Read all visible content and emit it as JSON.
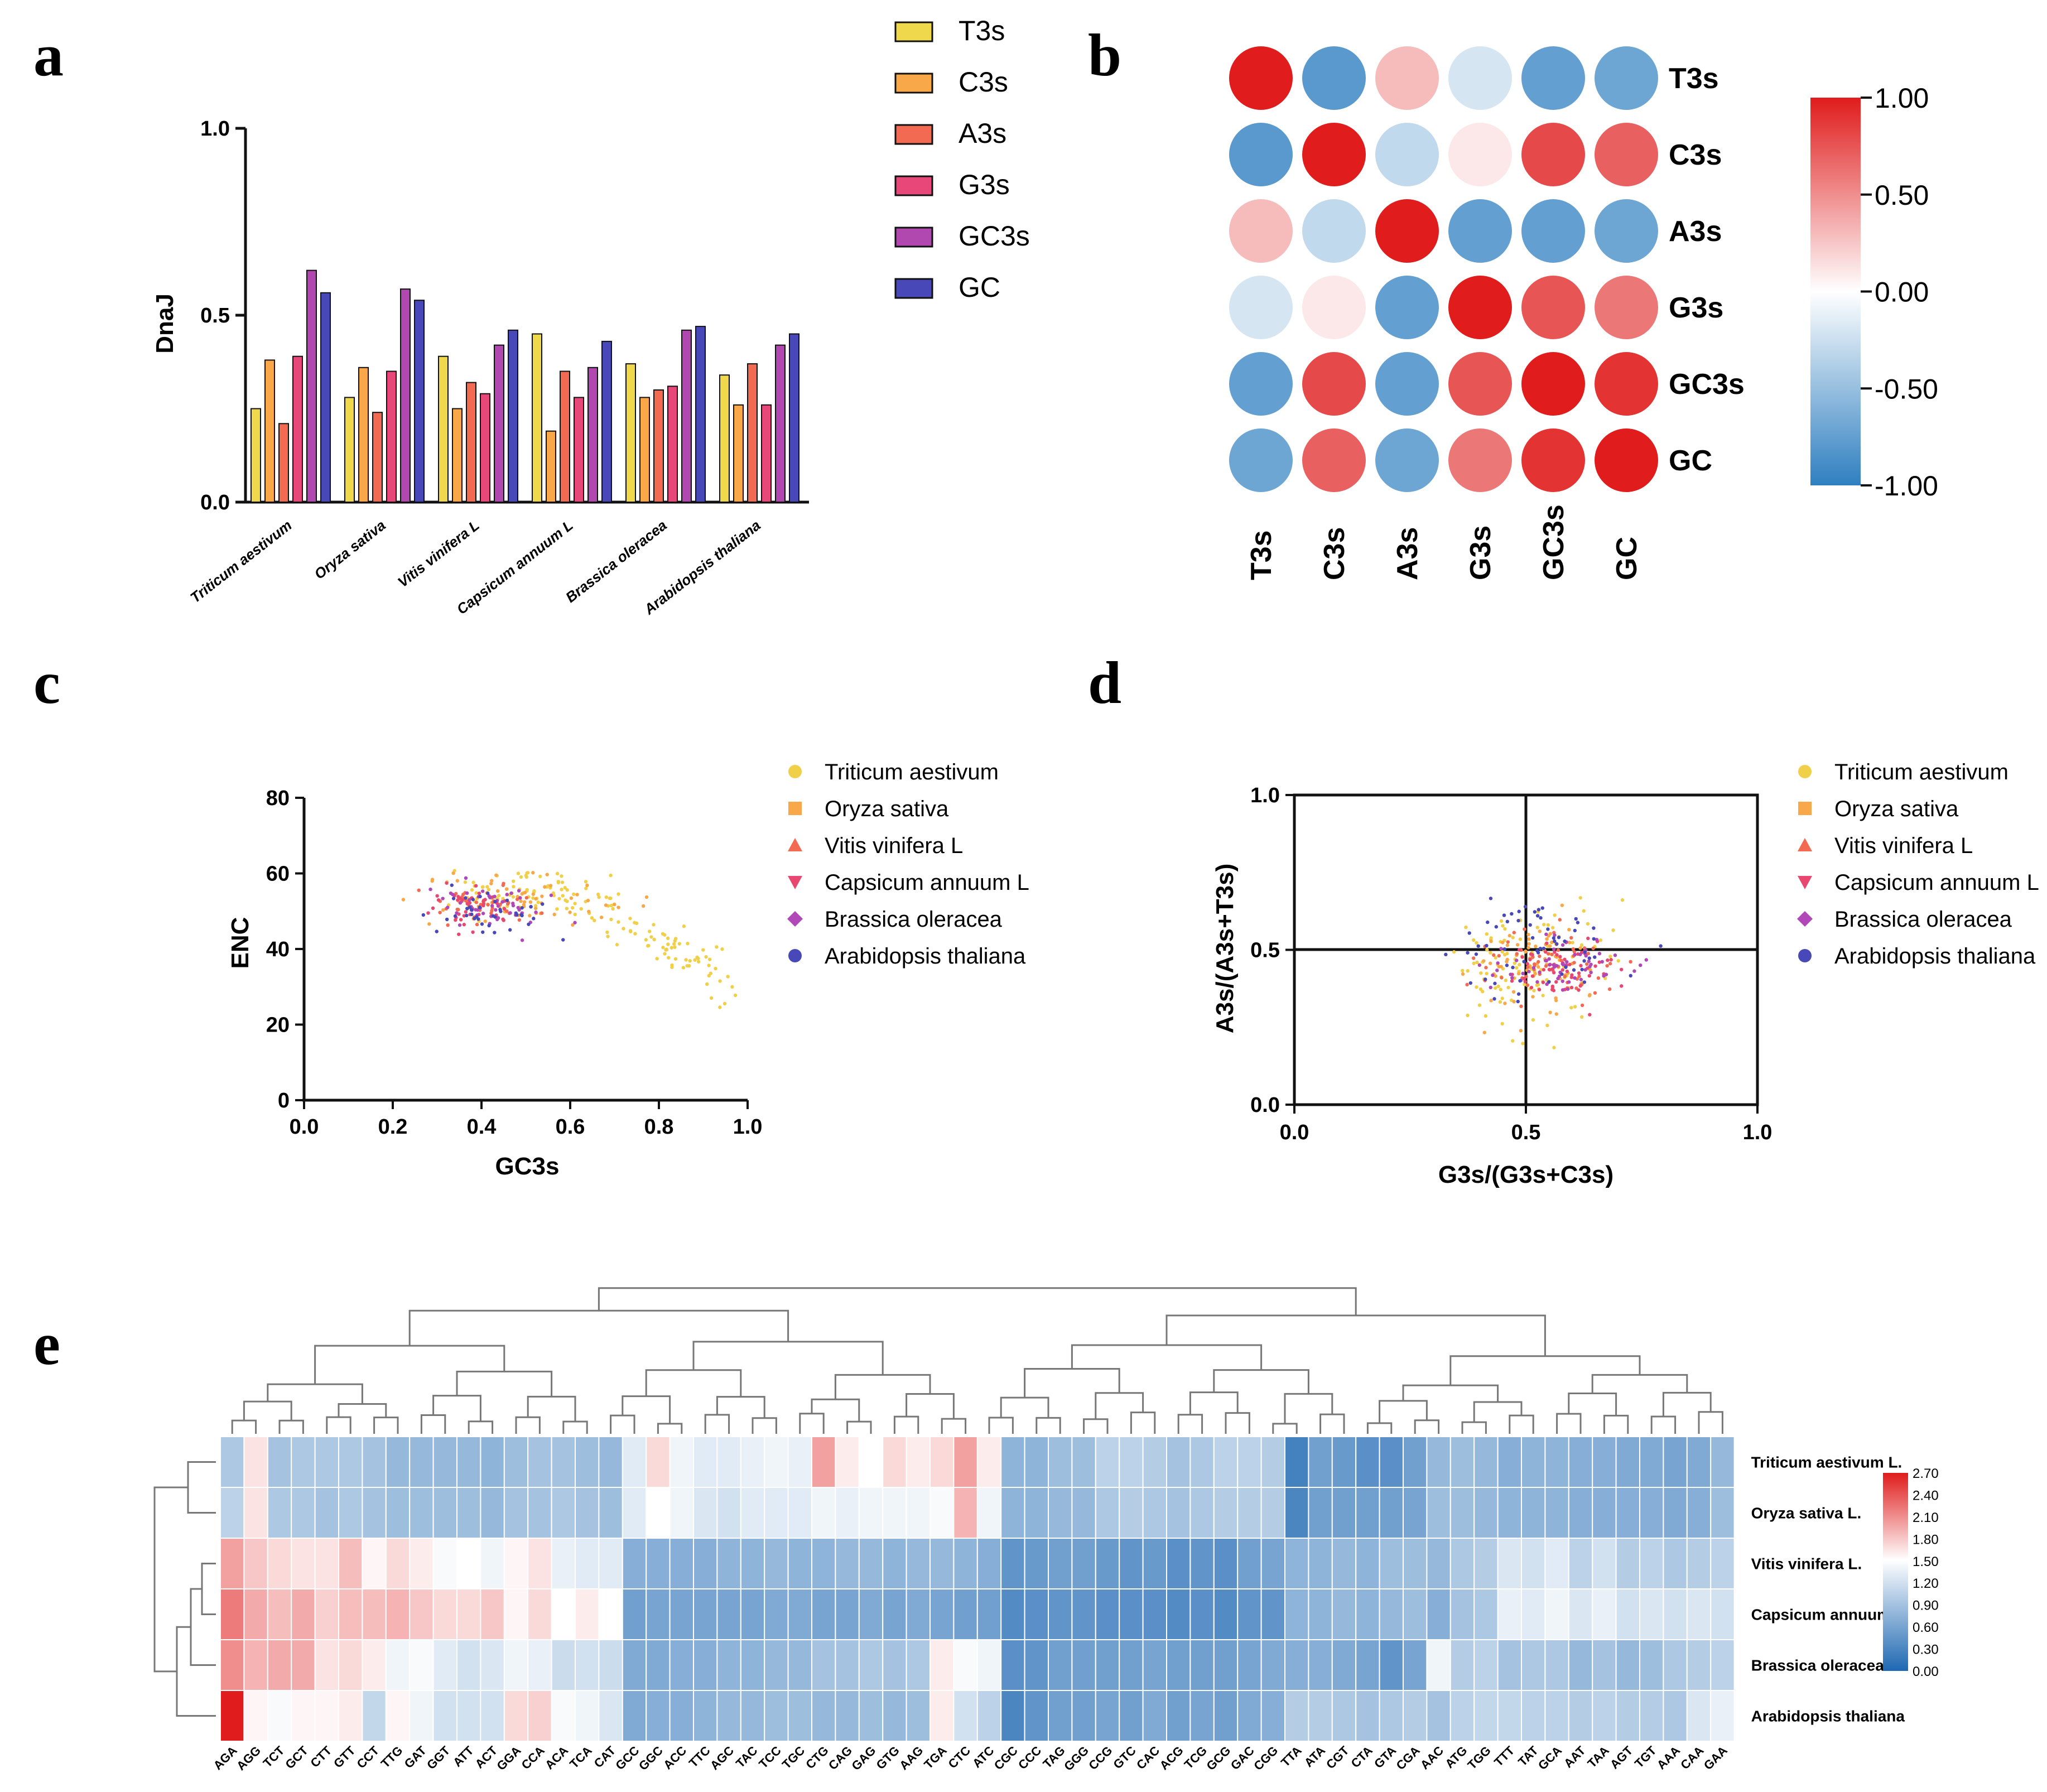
{
  "panels": {
    "a": {
      "letter": "a"
    },
    "b": {
      "letter": "b"
    },
    "c": {
      "letter": "c"
    },
    "d": {
      "letter": "d"
    },
    "e": {
      "letter": "e"
    }
  },
  "colors": {
    "T3s": "#f0d84c",
    "C3s": "#f8a848",
    "A3s": "#f26a52",
    "G3s": "#e8477a",
    "GC3s": "#b048b0",
    "GC": "#4848b8",
    "Triticum aestivum": "#f0d048",
    "Oryza sativa": "#f8a848",
    "Vitis vinifera L": "#f26a52",
    "Capsicum annuum L": "#e84870",
    "Brassica oleracea": "#b048b8",
    "Arabidopsis thaliana": "#4848b8"
  },
  "chart_data": [
    {
      "id": "a",
      "type": "bar",
      "title": "",
      "ylabel": "DnaJ",
      "xlabel": "",
      "ylim": [
        0,
        1.0
      ],
      "yticks": [
        "0.0",
        "0.5",
        "1.0"
      ],
      "categories": [
        "Triticum aestivum",
        "Oryza sativa",
        "Vitis vinifera L",
        "Capsicum annuum L",
        "Brassica oleracea",
        "Arabidopsis thaliana"
      ],
      "series": [
        {
          "name": "T3s",
          "values": [
            0.25,
            0.28,
            0.39,
            0.45,
            0.37,
            0.34
          ]
        },
        {
          "name": "C3s",
          "values": [
            0.38,
            0.36,
            0.25,
            0.19,
            0.28,
            0.26
          ]
        },
        {
          "name": "A3s",
          "values": [
            0.21,
            0.24,
            0.32,
            0.35,
            0.3,
            0.37
          ]
        },
        {
          "name": "G3s",
          "values": [
            0.39,
            0.35,
            0.29,
            0.28,
            0.31,
            0.26
          ]
        },
        {
          "name": "GC3s",
          "values": [
            0.62,
            0.57,
            0.42,
            0.36,
            0.46,
            0.42
          ]
        },
        {
          "name": "GC",
          "values": [
            0.56,
            0.54,
            0.46,
            0.43,
            0.47,
            0.45
          ]
        }
      ]
    },
    {
      "id": "b",
      "type": "heatmap",
      "title": "",
      "rows": [
        "T3s",
        "C3s",
        "A3s",
        "G3s",
        "GC3s",
        "GC"
      ],
      "cols": [
        "T3s",
        "C3s",
        "A3s",
        "G3s",
        "GC3s",
        "GC"
      ],
      "values": [
        [
          1.0,
          -0.8,
          0.3,
          -0.2,
          -0.75,
          -0.7
        ],
        [
          -0.8,
          1.0,
          -0.3,
          0.1,
          0.8,
          0.7
        ],
        [
          0.3,
          -0.3,
          1.0,
          -0.75,
          -0.75,
          -0.7
        ],
        [
          -0.2,
          0.1,
          -0.75,
          1.0,
          0.75,
          0.6
        ],
        [
          -0.75,
          0.8,
          -0.75,
          0.75,
          1.0,
          0.9
        ],
        [
          -0.7,
          0.7,
          -0.7,
          0.6,
          0.9,
          1.0
        ]
      ],
      "colorbar_ticks": [
        "1.00",
        "0.50",
        "0.00",
        "-0.50",
        "-1.00"
      ],
      "range": [
        -1,
        1
      ]
    },
    {
      "id": "c",
      "type": "scatter",
      "title": "",
      "xlabel": "GC3s",
      "ylabel": "ENC",
      "xlim": [
        0,
        1.0
      ],
      "ylim": [
        0,
        80
      ],
      "xticks": [
        "0.0",
        "0.2",
        "0.4",
        "0.6",
        "0.8",
        "1.0"
      ],
      "yticks": [
        "0",
        "20",
        "40",
        "60",
        "80"
      ],
      "series": [
        {
          "name": "Triticum aestivum",
          "center": [
            0.55,
            52
          ],
          "spread": [
            0.22,
            0.1
          ],
          "n": 160,
          "trend": "decline"
        },
        {
          "name": "Oryza sativa",
          "center": [
            0.48,
            53
          ],
          "spread": [
            0.1,
            0.1
          ],
          "n": 60,
          "trend": "flat"
        },
        {
          "name": "Vitis vinifera L",
          "center": [
            0.4,
            52
          ],
          "spread": [
            0.06,
            0.07
          ],
          "n": 40,
          "trend": "flat"
        },
        {
          "name": "Capsicum annuum L",
          "center": [
            0.38,
            51
          ],
          "spread": [
            0.05,
            0.07
          ],
          "n": 40,
          "trend": "flat"
        },
        {
          "name": "Brassica oleracea",
          "center": [
            0.44,
            52
          ],
          "spread": [
            0.06,
            0.07
          ],
          "n": 50,
          "trend": "flat"
        },
        {
          "name": "Arabidopsis thaliana",
          "center": [
            0.41,
            50
          ],
          "spread": [
            0.06,
            0.07
          ],
          "n": 40,
          "trend": "flat"
        }
      ]
    },
    {
      "id": "d",
      "type": "scatter",
      "title": "",
      "xlabel": "G3s/(G3s+C3s)",
      "ylabel": "A3s/(A3s+T3s)",
      "xlim": [
        0,
        1.0
      ],
      "ylim": [
        0,
        1.0
      ],
      "xticks": [
        "0.0",
        "0.5",
        "1.0"
      ],
      "yticks": [
        "0.0",
        "0.5",
        "1.0"
      ],
      "series": [
        {
          "name": "Triticum aestivum",
          "center": [
            0.5,
            0.47
          ],
          "spread": [
            0.08,
            0.1
          ],
          "n": 110
        },
        {
          "name": "Oryza sativa",
          "center": [
            0.52,
            0.46
          ],
          "spread": [
            0.07,
            0.08
          ],
          "n": 70
        },
        {
          "name": "Vitis vinifera L",
          "center": [
            0.56,
            0.45
          ],
          "spread": [
            0.07,
            0.05
          ],
          "n": 60
        },
        {
          "name": "Capsicum annuum L",
          "center": [
            0.57,
            0.44
          ],
          "spread": [
            0.07,
            0.05
          ],
          "n": 60
        },
        {
          "name": "Brassica oleracea",
          "center": [
            0.58,
            0.44
          ],
          "spread": [
            0.07,
            0.05
          ],
          "n": 60
        },
        {
          "name": "Arabidopsis thaliana",
          "center": [
            0.52,
            0.5
          ],
          "spread": [
            0.1,
            0.08
          ],
          "n": 60
        }
      ]
    },
    {
      "id": "e",
      "type": "heatmap",
      "title": "",
      "rows": [
        "Triticum aestivum L.",
        "Oryza sativa L.",
        "Vitis vinifera L.",
        "Capsicum annuum L.",
        "Brassica oleracea",
        "Arabidopsis thaliana"
      ],
      "cols": [
        "AGA",
        "AGG",
        "TCT",
        "GCT",
        "CTT",
        "GTT",
        "CCT",
        "TTG",
        "GAT",
        "GGT",
        "ATT",
        "ACT",
        "GGA",
        "CCA",
        "ACA",
        "TCA",
        "CAT",
        "GCC",
        "GGC",
        "ACC",
        "TTC",
        "AGC",
        "TAC",
        "TCC",
        "TGC",
        "CTG",
        "CAG",
        "GAG",
        "GTG",
        "AAG",
        "TGA",
        "CTC",
        "ATC",
        "CGC",
        "CCC",
        "TAG",
        "GGG",
        "CCG",
        "GTC",
        "CAC",
        "ACG",
        "TCG",
        "GCG",
        "GAC",
        "CGG",
        "TTA",
        "ATA",
        "CGT",
        "CTA",
        "GTA",
        "CGA",
        "AAC",
        "ATG",
        "TGG",
        "TTT",
        "TAT",
        "GCA",
        "AAT",
        "TAA",
        "AGT",
        "TGT",
        "AAA",
        "CAA",
        "GAA"
      ],
      "colorbar_ticks": [
        "2.70",
        "2.40",
        "2.10",
        "1.80",
        "1.50",
        "1.20",
        "0.90",
        "0.60",
        "0.30",
        "0.00"
      ],
      "range": [
        0,
        2.7
      ],
      "values": [
        [
          0.95,
          1.65,
          0.9,
          0.95,
          0.95,
          0.95,
          0.9,
          0.8,
          0.8,
          0.8,
          0.8,
          0.75,
          0.85,
          0.9,
          0.9,
          0.85,
          0.8,
          1.3,
          1.7,
          1.4,
          1.3,
          1.3,
          1.35,
          1.4,
          1.35,
          2.0,
          1.6,
          1.5,
          1.7,
          1.6,
          1.7,
          2.0,
          1.6,
          0.75,
          0.75,
          0.85,
          0.85,
          1.05,
          1.05,
          1.0,
          0.9,
          0.95,
          1.05,
          1.05,
          1.0,
          0.25,
          0.55,
          0.5,
          0.4,
          0.4,
          0.55,
          0.8,
          0.85,
          0.8,
          0.7,
          0.75,
          0.75,
          0.7,
          0.7,
          0.65,
          0.65,
          0.6,
          0.65,
          0.8
        ],
        [
          1.05,
          1.65,
          0.95,
          0.95,
          0.9,
          0.95,
          0.9,
          0.85,
          0.85,
          0.85,
          0.85,
          0.8,
          0.9,
          0.9,
          0.95,
          0.9,
          0.85,
          1.3,
          1.5,
          1.4,
          1.25,
          1.2,
          1.3,
          1.3,
          1.3,
          1.4,
          1.35,
          1.4,
          1.4,
          1.4,
          1.45,
          1.9,
          1.4,
          0.75,
          0.75,
          0.8,
          0.8,
          0.95,
          1.0,
          0.95,
          0.9,
          0.95,
          1.0,
          1.0,
          1.0,
          0.3,
          0.55,
          0.55,
          0.55,
          0.55,
          0.6,
          0.85,
          0.85,
          0.8,
          0.75,
          0.75,
          0.75,
          0.7,
          0.7,
          0.7,
          0.7,
          0.65,
          0.7,
          0.85
        ],
        [
          2.0,
          1.8,
          1.7,
          1.65,
          1.65,
          1.85,
          1.55,
          1.7,
          1.6,
          1.45,
          1.5,
          1.4,
          1.55,
          1.65,
          1.35,
          1.3,
          1.3,
          0.7,
          0.7,
          0.7,
          0.7,
          0.75,
          0.75,
          0.8,
          0.75,
          0.75,
          0.8,
          0.8,
          0.75,
          0.8,
          0.8,
          0.75,
          0.7,
          0.45,
          0.5,
          0.55,
          0.55,
          0.5,
          0.45,
          0.5,
          0.4,
          0.45,
          0.4,
          0.55,
          0.6,
          0.75,
          0.75,
          0.8,
          0.75,
          0.85,
          0.85,
          0.8,
          0.95,
          1.0,
          1.25,
          1.2,
          1.3,
          1.05,
          1.2,
          1.0,
          1.05,
          0.95,
          1.0,
          1.05
        ],
        [
          2.2,
          1.95,
          1.85,
          1.95,
          1.75,
          1.85,
          1.85,
          1.9,
          1.8,
          1.7,
          1.7,
          1.8,
          1.55,
          1.7,
          1.5,
          1.6,
          1.5,
          0.55,
          0.6,
          0.6,
          0.6,
          0.6,
          0.6,
          0.65,
          0.65,
          0.6,
          0.6,
          0.65,
          0.6,
          0.65,
          0.6,
          0.55,
          0.55,
          0.35,
          0.4,
          0.45,
          0.45,
          0.4,
          0.4,
          0.4,
          0.35,
          0.4,
          0.35,
          0.45,
          0.45,
          0.75,
          0.75,
          0.8,
          0.75,
          0.8,
          0.85,
          0.7,
          0.9,
          0.95,
          1.35,
          1.3,
          1.4,
          1.25,
          1.35,
          1.2,
          1.25,
          1.2,
          1.25,
          1.2
        ],
        [
          2.1,
          1.9,
          1.95,
          1.95,
          1.65,
          1.7,
          1.6,
          1.4,
          1.45,
          1.3,
          1.2,
          1.25,
          1.4,
          1.35,
          1.15,
          1.2,
          1.15,
          0.65,
          0.65,
          0.7,
          0.7,
          0.75,
          0.75,
          0.8,
          0.8,
          0.9,
          0.9,
          0.95,
          0.9,
          0.95,
          1.6,
          1.45,
          1.4,
          0.4,
          0.45,
          0.55,
          0.55,
          0.55,
          0.55,
          0.6,
          0.55,
          0.55,
          0.55,
          0.6,
          0.65,
          0.7,
          0.7,
          0.65,
          0.6,
          0.45,
          0.6,
          1.4,
          1.0,
          1.05,
          0.9,
          0.95,
          0.95,
          0.8,
          0.9,
          0.8,
          0.85,
          0.95,
          1.0,
          1.05
        ],
        [
          2.7,
          1.55,
          1.45,
          1.55,
          1.55,
          1.6,
          1.1,
          1.55,
          1.4,
          1.2,
          1.2,
          1.2,
          1.7,
          1.75,
          1.45,
          1.4,
          1.25,
          0.65,
          0.7,
          0.7,
          0.75,
          0.8,
          0.8,
          0.85,
          0.85,
          0.8,
          0.8,
          0.85,
          0.8,
          0.85,
          1.6,
          1.2,
          1.05,
          0.3,
          0.45,
          0.55,
          0.55,
          0.6,
          0.55,
          0.65,
          0.55,
          0.6,
          0.55,
          0.65,
          0.7,
          1.0,
          1.0,
          0.95,
          0.9,
          0.95,
          1.0,
          0.9,
          1.05,
          1.1,
          1.1,
          1.05,
          1.05,
          1.0,
          1.05,
          1.0,
          1.0,
          0.95,
          1.25,
          1.35
        ]
      ]
    }
  ]
}
